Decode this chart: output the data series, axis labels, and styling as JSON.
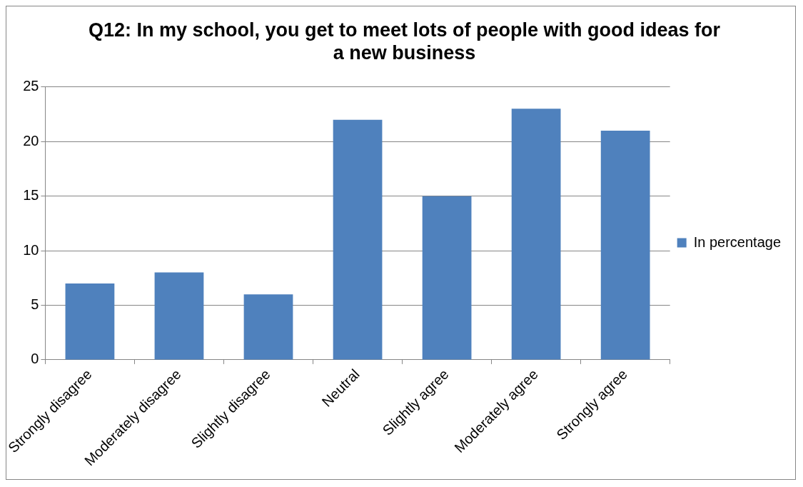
{
  "chart_data": {
    "type": "bar",
    "title": "Q12: In my school, you get to meet lots of people with good ideas for a new business",
    "categories": [
      "Strongly disagree",
      "Moderately disagree",
      "Slightly disagree",
      "Neutral",
      "Slightly agree",
      "Moderately agree",
      "Strongly agree"
    ],
    "series": [
      {
        "name": "In percentage",
        "color": "#4f81bd",
        "values": [
          7,
          8,
          6,
          22,
          15,
          23,
          21
        ]
      }
    ],
    "ylim": [
      0,
      25
    ],
    "yticks": [
      0,
      5,
      10,
      15,
      20,
      25
    ],
    "grid": "y",
    "legend": "right"
  }
}
